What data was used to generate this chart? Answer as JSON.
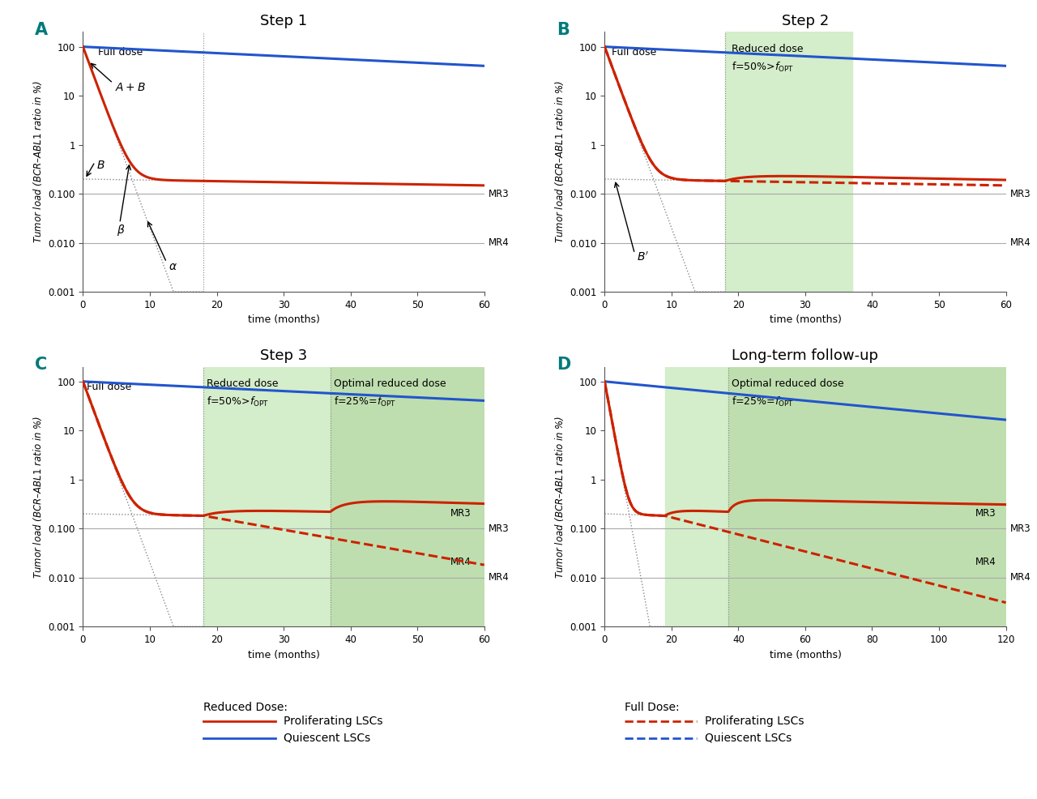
{
  "colors": {
    "red": "#CC2200",
    "blue": "#2255CC",
    "green_bg_light": "#D4EDCA",
    "green_bg_dark": "#BFDEAF",
    "dotted": "#888888",
    "MR_line": "#AAAAAA"
  },
  "yticks": [
    0.001,
    0.01,
    0.1,
    1,
    10,
    100
  ],
  "ytick_labels": [
    "0.001",
    "0.010",
    "0.100",
    "1",
    "10",
    "100"
  ],
  "MR3": 0.1,
  "MR4": 0.01,
  "panel_label_color": "#007A7A"
}
